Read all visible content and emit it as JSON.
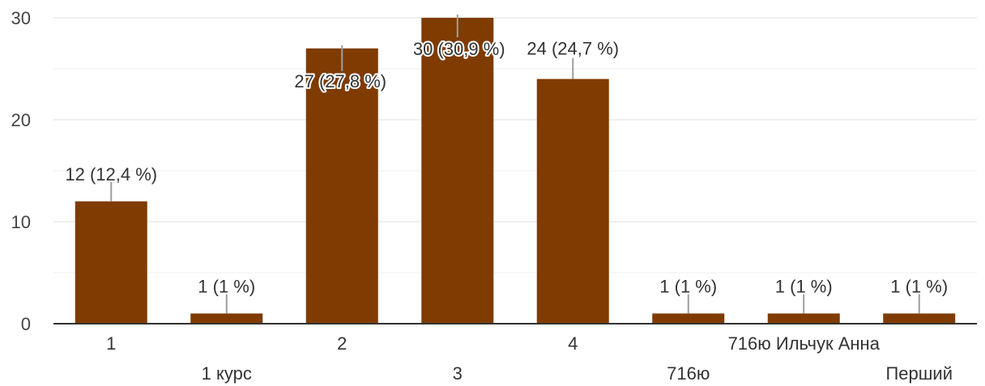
{
  "chart_data": {
    "type": "bar",
    "categories": [
      "1",
      "1 курс",
      "2",
      "3",
      "4",
      "716ю",
      "716ю Ильчук Анна",
      "Перший"
    ],
    "values": [
      12,
      1,
      27,
      30,
      24,
      1,
      1,
      1
    ],
    "data_labels": [
      "12 (12,4 %)",
      "1 (1 %)",
      "27 (27,8 %)",
      "30 (30,9 %)",
      "24 (24,7 %)",
      "1 (1 %)",
      "1 (1 %)",
      "1 (1 %)"
    ],
    "title": "",
    "xlabel": "",
    "ylabel": "",
    "ylim": [
      0,
      30
    ],
    "yticks": [
      "0",
      "10",
      "20",
      "30"
    ],
    "grid": true,
    "legend": "none",
    "bar_color": "#7f3b00"
  }
}
